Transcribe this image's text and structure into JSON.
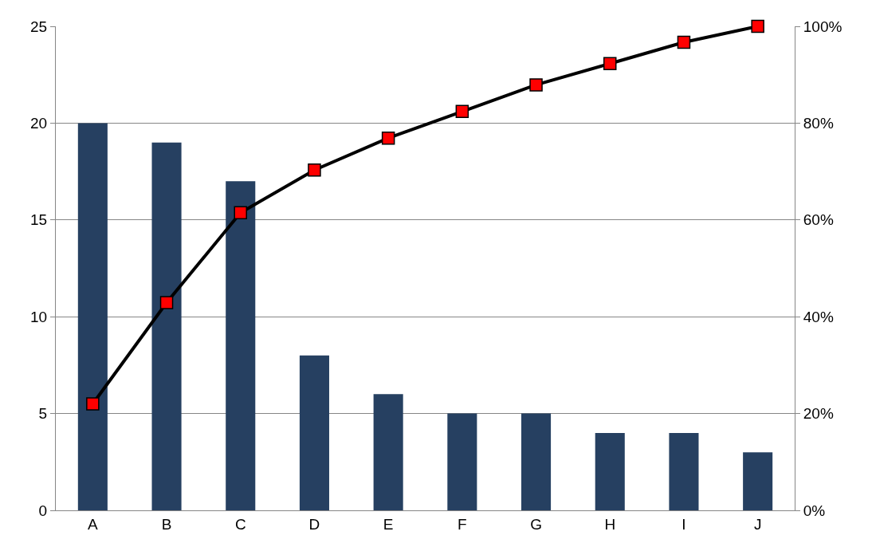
{
  "chart_data": {
    "type": "bar",
    "categories": [
      "A",
      "B",
      "C",
      "D",
      "E",
      "F",
      "G",
      "H",
      "I",
      "J"
    ],
    "series": [
      {
        "color": "#264061",
        "values": [
          20,
          19,
          17,
          8,
          6,
          5,
          5,
          4,
          4,
          3
        ]
      },
      {
        "type": "line",
        "axis": "y2",
        "color": "#000000",
        "colors": [
          "#ff0000",
          "#ff0000",
          "#ff0000",
          "#ff0000",
          "#ff0000",
          "#ff0000",
          "#ff0000",
          "#ff0000",
          "#ff0000",
          "#ff0000"
        ],
        "marker": "square",
        "line_style": "solid",
        "values": [
          22.0,
          42.9,
          61.5,
          70.3,
          76.9,
          82.4,
          87.9,
          92.3,
          96.7,
          100
        ]
      }
    ],
    "ylim": [
      0,
      25
    ],
    "yticks": [
      0,
      5,
      10,
      15,
      20,
      25
    ],
    "y2lim": [
      0,
      100
    ],
    "y2ticks": [
      {
        "value": 0,
        "label": "0%"
      },
      {
        "value": 20,
        "label": "20%"
      },
      {
        "value": 40,
        "label": "40%"
      },
      {
        "value": 60,
        "label": "60%"
      },
      {
        "value": 80,
        "label": "80%"
      },
      {
        "value": 100,
        "label": "100%"
      }
    ],
    "grid": "y",
    "legend": false
  }
}
